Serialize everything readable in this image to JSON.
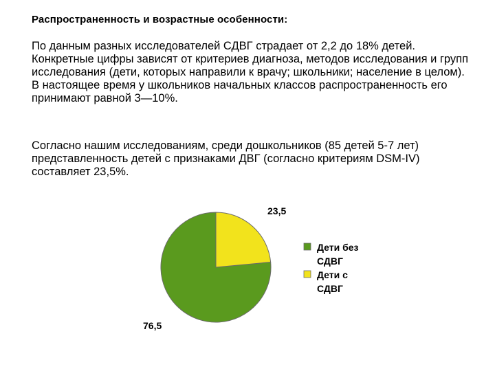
{
  "heading": "Распространенность и возрастные особенности:",
  "paragraphs": [
    "По данным разных исследователей СДВГ страдает от 2,2 до 18% детей. Конкретные цифры зависят от критериев диагноза, методов исследования и групп исследования (дети, которых направили к врачу; школьники; население в целом). В настоящее время у школьников начальных классов распространенность его принимают равной 3—10%.",
    "Согласно нашим исследованиям, среди дошкольников (85 детей 5-7 лет) представленность детей с признаками ДВГ (согласно критериям DSM-IV) составляет 23,5%."
  ],
  "chart_data": {
    "type": "pie",
    "categories": [
      "Дети без СДВГ",
      "Дети с СДВГ"
    ],
    "values": [
      76.5,
      23.5
    ],
    "data_labels": [
      "76,5",
      "23,5"
    ],
    "colors": [
      "#5a9a1e",
      "#f2e31c"
    ],
    "legend": {
      "placement": "right",
      "lines": [
        [
          "Дети без",
          "СДВГ"
        ],
        [
          "Дети с",
          "СДВГ"
        ]
      ]
    }
  }
}
